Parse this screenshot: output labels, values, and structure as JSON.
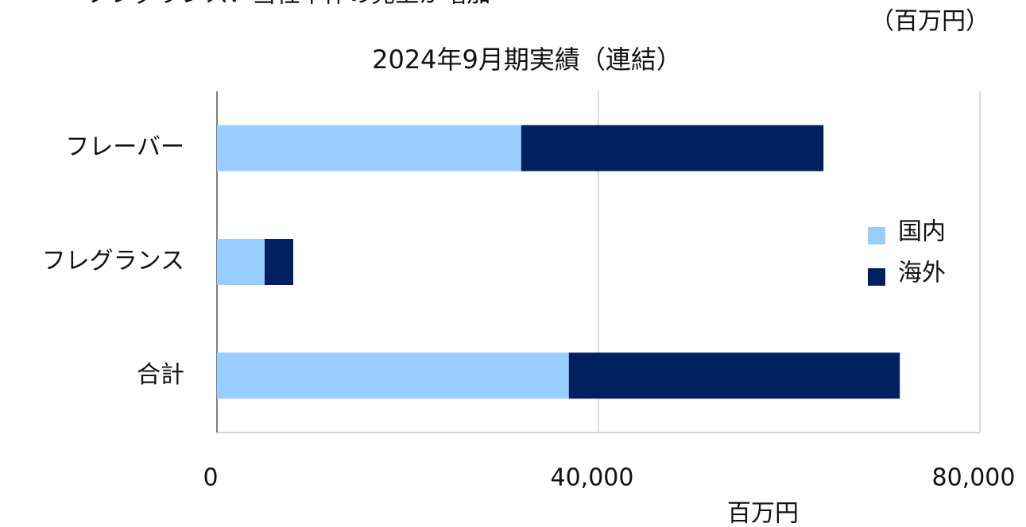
{
  "chart_data": {
    "type": "stacked_barh",
    "annotation": "フレグランス：当社単体の売上が増加",
    "unit_note": "（百万円）",
    "title": "2024年9月期実績（連結）",
    "x_label": "百万円",
    "categories": [
      "フレーバー",
      "フレグランス",
      "合計"
    ],
    "series": [
      {
        "name": "国内",
        "color": "#99ccff",
        "values": [
          31900,
          5000,
          36900
        ]
      },
      {
        "name": "海外",
        "color": "#002060",
        "values": [
          31700,
          3000,
          34700
        ]
      }
    ],
    "xlim": [
      0,
      80000
    ],
    "xticks": [
      0,
      {
        "value": 40000,
        "label": "40,000"
      },
      {
        "value": 80000,
        "label": "80,000"
      }
    ],
    "grid": true,
    "legend": "right"
  }
}
